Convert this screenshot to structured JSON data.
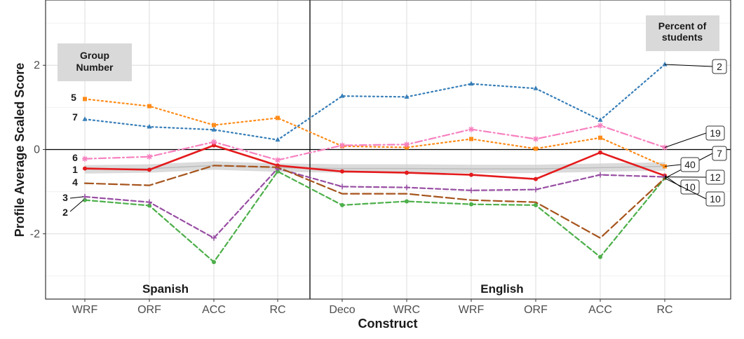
{
  "chart_data": {
    "type": "line",
    "xlabel": "Construct",
    "ylabel": "Profile Average Scaled Score",
    "ylim": [
      -3.55,
      3.55
    ],
    "yticks": [
      -2,
      0,
      2
    ],
    "categories": [
      "WRF",
      "ORF",
      "ACC",
      "RC",
      "Deco",
      "WRC",
      "WRF",
      "ORF",
      "ACC",
      "RC"
    ],
    "language_sections": [
      "Spanish",
      "English"
    ],
    "group_box_title": "Group Number",
    "percent_box_title": "Percent of students",
    "series": [
      {
        "name": "1",
        "color": "#e41a1c",
        "dash": "solid",
        "marker": "circle",
        "percent": "10",
        "values": [
          -0.45,
          -0.48,
          0.1,
          -0.38,
          -0.52,
          -0.55,
          -0.6,
          -0.7,
          -0.07,
          -0.62
        ]
      },
      {
        "name": "2",
        "color": "#4daf4a",
        "dash": "dashed",
        "marker": "circle",
        "percent": "10",
        "values": [
          -1.2,
          -1.33,
          -2.67,
          -0.52,
          -1.32,
          -1.23,
          -1.3,
          -1.32,
          -2.55,
          -0.68
        ]
      },
      {
        "name": "3",
        "color": "#984ea3",
        "dash": "dashed",
        "marker": "plus",
        "percent": "12",
        "values": [
          -1.12,
          -1.25,
          -2.1,
          -0.45,
          -0.88,
          -0.9,
          -0.97,
          -0.95,
          -0.6,
          -0.65
        ]
      },
      {
        "name": "4",
        "color": "#a6541c",
        "dash": "longdash",
        "marker": "none",
        "percent": "7",
        "values": [
          -0.8,
          -0.85,
          -0.38,
          -0.42,
          -1.05,
          -1.05,
          -1.2,
          -1.25,
          -2.1,
          -0.68
        ]
      },
      {
        "name": "5",
        "color": "#ff8c1a",
        "dash": "dotted",
        "marker": "square",
        "percent": "40",
        "values": [
          1.2,
          1.03,
          0.58,
          0.75,
          0.08,
          0.05,
          0.25,
          0.02,
          0.28,
          -0.4
        ]
      },
      {
        "name": "6",
        "color": "#f781bf",
        "dash": "dashdot",
        "marker": "star",
        "percent": "19",
        "values": [
          -0.22,
          -0.17,
          0.18,
          -0.25,
          0.1,
          0.12,
          0.48,
          0.25,
          0.57,
          0.05
        ]
      },
      {
        "name": "7",
        "color": "#377eb8",
        "dash": "dotted",
        "marker": "triangle",
        "percent": "2",
        "values": [
          0.72,
          0.54,
          0.47,
          0.23,
          1.27,
          1.25,
          1.56,
          1.45,
          0.7,
          2.02
        ]
      }
    ],
    "smooth_band": {
      "mean": [
        -0.47,
        -0.45,
        -0.38,
        -0.43,
        -0.45,
        -0.45,
        -0.46,
        -0.46,
        -0.43,
        -0.4
      ],
      "halfwidth": 0.1
    },
    "left_labels_order": [
      "5",
      "7",
      "6",
      "1",
      "4",
      "3",
      "2"
    ],
    "right_labels_order": [
      "2",
      "19",
      "7",
      "40",
      "12",
      "10",
      "10"
    ]
  }
}
